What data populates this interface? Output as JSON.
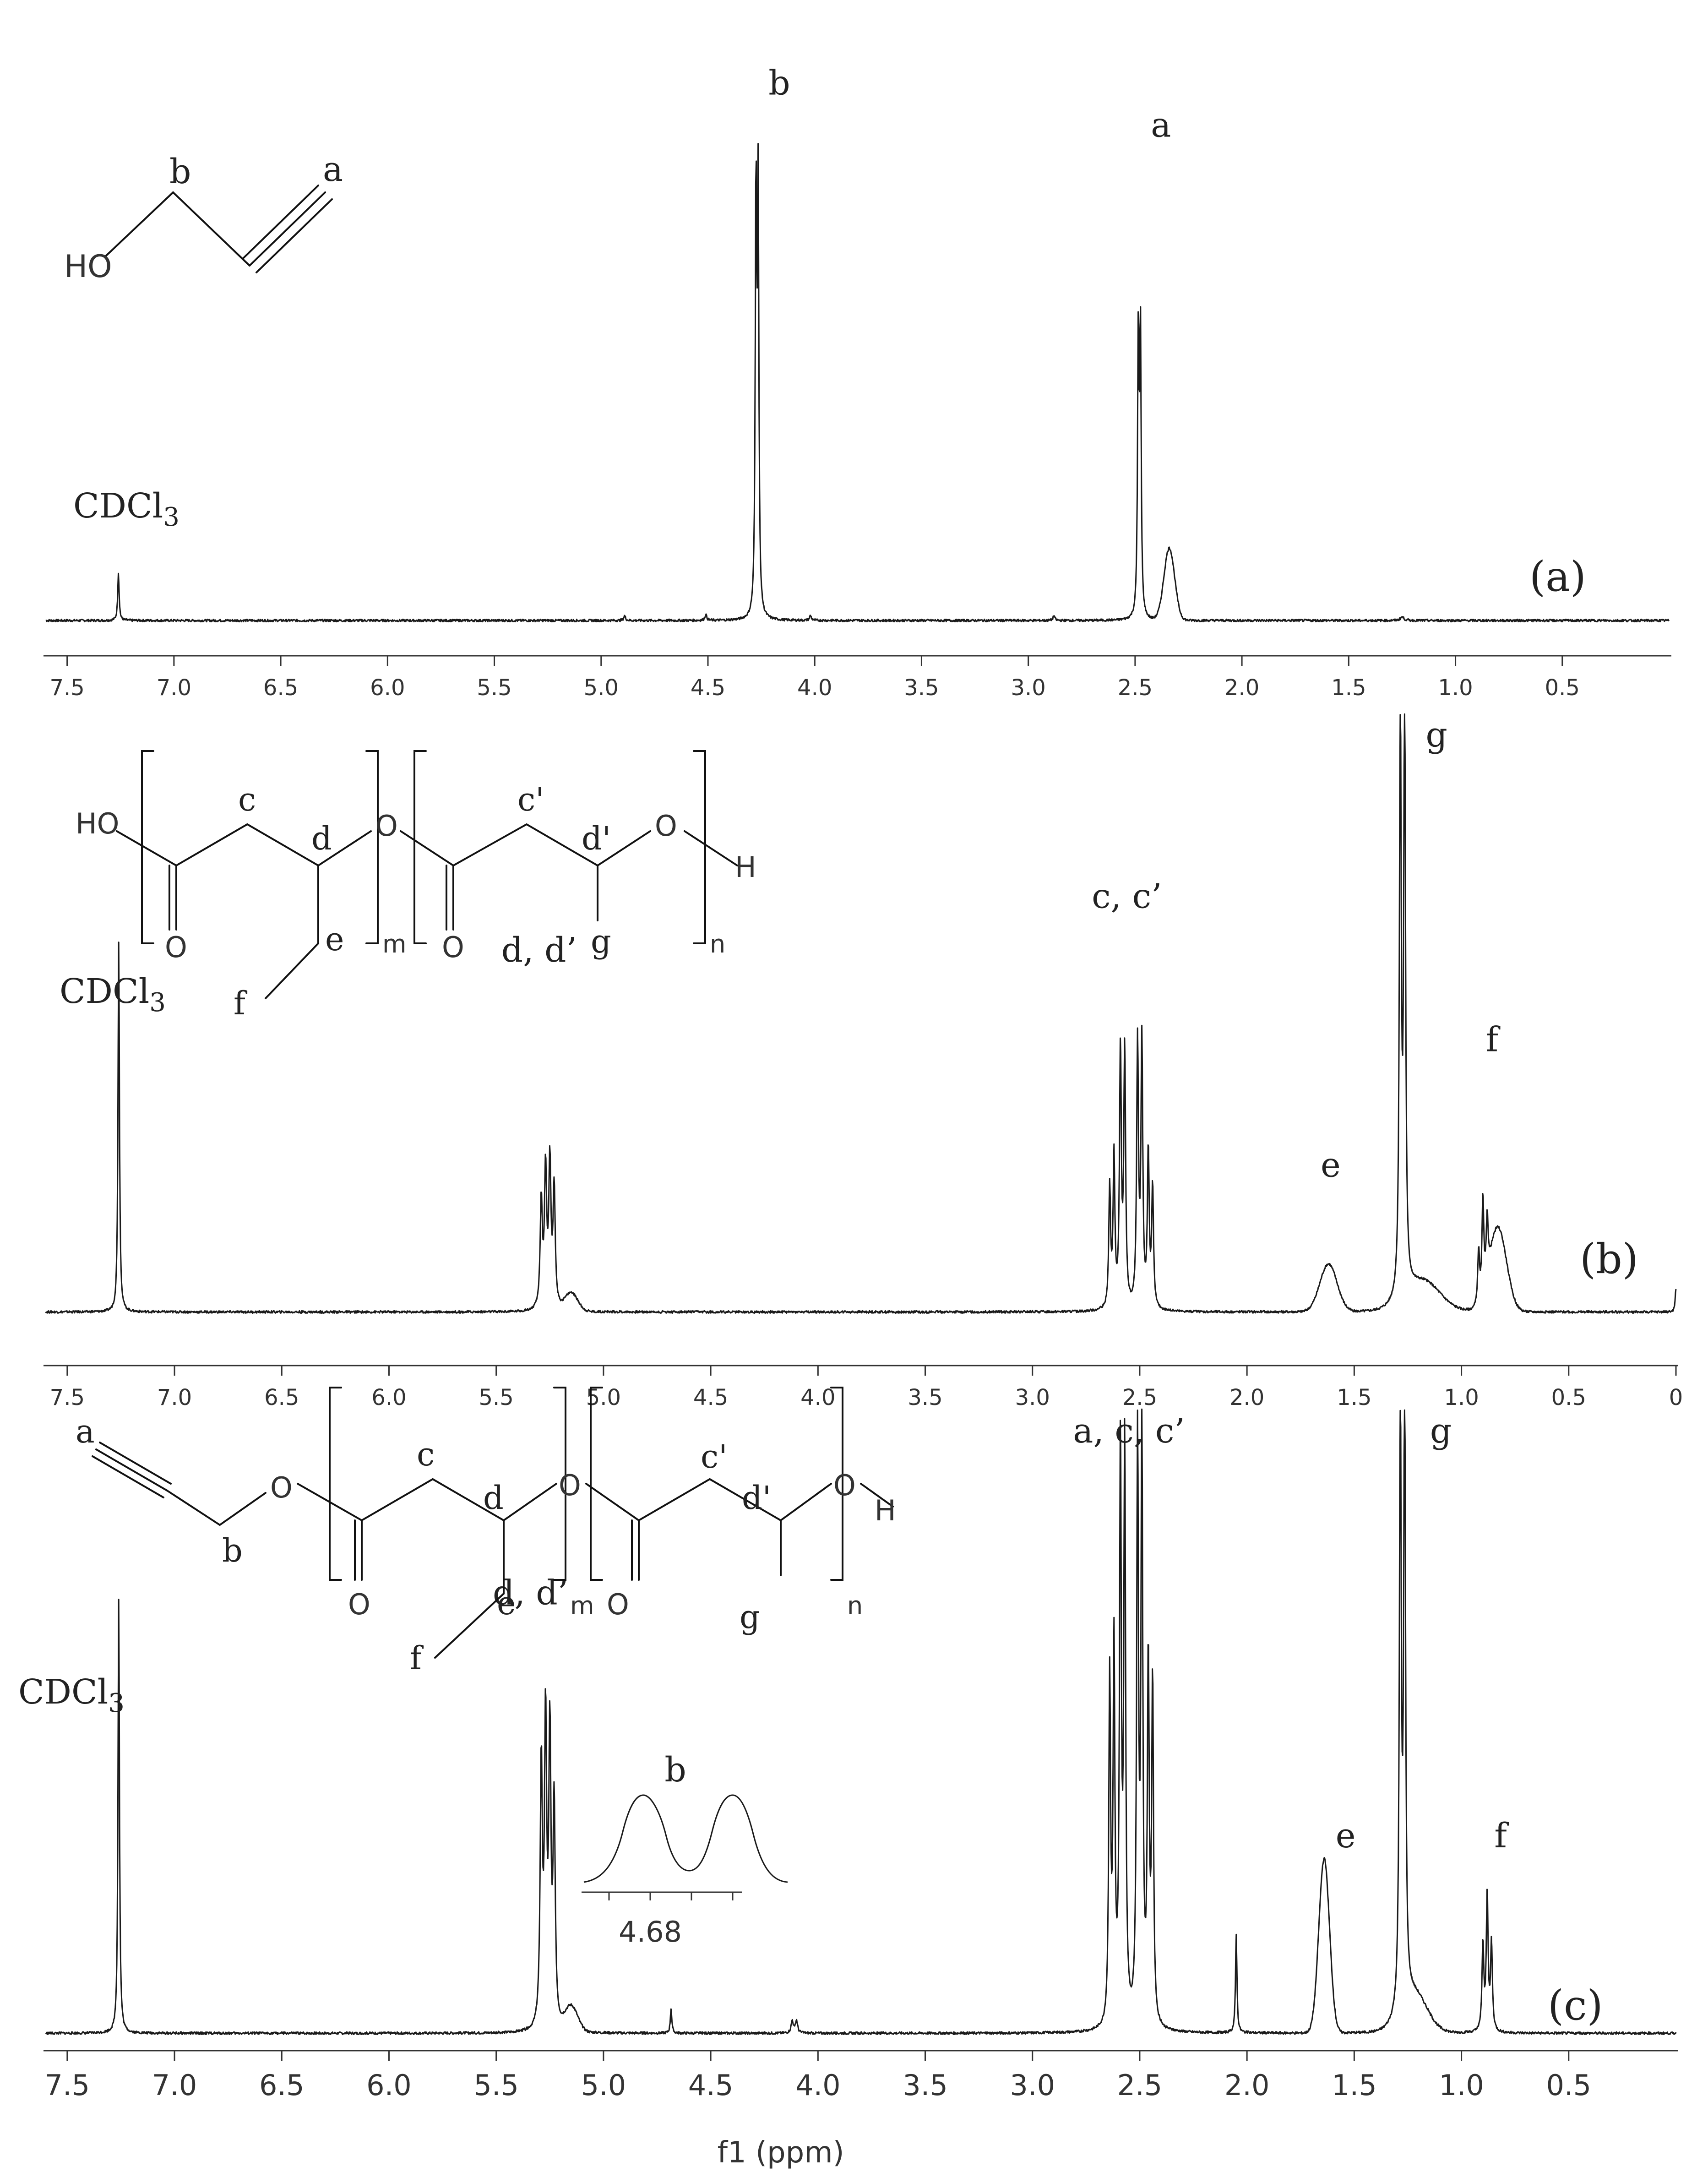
{
  "chart_data": [
    {
      "type": "line",
      "panel_label": "(a)",
      "x_ticks": [
        "7.5",
        "7.0",
        "6.5",
        "6.0",
        "5.5",
        "5.0",
        "4.5",
        "4.0",
        "3.5",
        "3.0",
        "2.5",
        "2.0",
        "1.5",
        "1.0",
        "0.5"
      ],
      "xlim": [
        7.6,
        0.0
      ],
      "solvent_label": "CDCl3",
      "structure": {
        "atom": "HO",
        "labels": [
          "b",
          "a"
        ]
      },
      "peaks": [
        {
          "x": 7.26,
          "h": 0.08,
          "w": 0.004
        },
        {
          "x": 4.89,
          "h": 0.008,
          "w": 0.005
        },
        {
          "x": 4.51,
          "h": 0.01,
          "w": 0.005
        },
        {
          "x": 4.275,
          "h": 0.7,
          "w": 0.004
        },
        {
          "x": 4.265,
          "h": 0.7,
          "w": 0.004
        },
        {
          "x": 4.02,
          "h": 0.008,
          "w": 0.005
        },
        {
          "x": 2.88,
          "h": 0.008,
          "w": 0.005
        },
        {
          "x": 2.485,
          "h": 0.47,
          "w": 0.004
        },
        {
          "x": 2.475,
          "h": 0.47,
          "w": 0.004
        },
        {
          "x": 2.34,
          "h": 0.12,
          "w": 0.025
        },
        {
          "x": 1.25,
          "h": 0.006,
          "w": 0.01
        }
      ],
      "labels": [
        {
          "text": "b",
          "x": 4.27,
          "y": 0.93
        },
        {
          "text": "a",
          "x": 2.48,
          "y": 0.86
        }
      ]
    },
    {
      "type": "line",
      "panel_label": "(b)",
      "x_ticks": [
        "7.5",
        "7.0",
        "6.5",
        "6.0",
        "5.5",
        "5.0",
        "4.5",
        "4.0",
        "3.5",
        "3.0",
        "2.5",
        "2.0",
        "1.5",
        "1.0",
        "0.5",
        "0"
      ],
      "xlim": [
        7.6,
        0.0
      ],
      "solvent_label": "CDCl3",
      "structure": {
        "atoms": [
          "HO",
          "O",
          "O",
          "O",
          "O",
          "H"
        ],
        "labels": [
          "c",
          "d",
          "e",
          "f",
          "c'",
          "d'",
          "g"
        ],
        "subscripts": [
          "m",
          "n"
        ]
      },
      "peaks": [
        {
          "x": 7.26,
          "h": 0.62,
          "w": 0.004
        },
        {
          "x": 5.29,
          "h": 0.18,
          "w": 0.006
        },
        {
          "x": 5.27,
          "h": 0.23,
          "w": 0.006
        },
        {
          "x": 5.25,
          "h": 0.24,
          "w": 0.006
        },
        {
          "x": 5.23,
          "h": 0.2,
          "w": 0.006
        },
        {
          "x": 5.15,
          "h": 0.03,
          "w": 0.03
        },
        {
          "x": 2.64,
          "h": 0.2,
          "w": 0.005
        },
        {
          "x": 2.62,
          "h": 0.25,
          "w": 0.005
        },
        {
          "x": 2.59,
          "h": 0.43,
          "w": 0.005
        },
        {
          "x": 2.57,
          "h": 0.43,
          "w": 0.005
        },
        {
          "x": 2.51,
          "h": 0.44,
          "w": 0.005
        },
        {
          "x": 2.49,
          "h": 0.44,
          "w": 0.005
        },
        {
          "x": 2.46,
          "h": 0.26,
          "w": 0.005
        },
        {
          "x": 2.44,
          "h": 0.2,
          "w": 0.005
        },
        {
          "x": 1.62,
          "h": 0.08,
          "w": 0.04
        },
        {
          "x": 1.285,
          "h": 1.0,
          "w": 0.005
        },
        {
          "x": 1.265,
          "h": 1.0,
          "w": 0.005
        },
        {
          "x": 1.18,
          "h": 0.05,
          "w": 0.08
        },
        {
          "x": 0.92,
          "h": 0.09,
          "w": 0.005
        },
        {
          "x": 0.9,
          "h": 0.16,
          "w": 0.005
        },
        {
          "x": 0.88,
          "h": 0.1,
          "w": 0.005
        },
        {
          "x": 0.83,
          "h": 0.14,
          "w": 0.04
        },
        {
          "x": 0.0,
          "h": 0.04,
          "w": 0.004
        }
      ],
      "labels": [
        {
          "text": "d, d’",
          "x": 5.3,
          "y": 0.64
        },
        {
          "text": "c, c’",
          "x": 2.56,
          "y": 0.73
        },
        {
          "text": "e",
          "x": 1.71,
          "y": 0.28
        },
        {
          "text": "g",
          "x": 1.22,
          "y": 1.0
        },
        {
          "text": "f",
          "x": 0.94,
          "y": 0.49
        }
      ]
    },
    {
      "type": "line",
      "panel_label": "(c)",
      "x_label": "f1 (ppm)",
      "x_ticks": [
        "7.5",
        "7.0",
        "6.5",
        "6.0",
        "5.5",
        "5.0",
        "4.5",
        "4.0",
        "3.5",
        "3.0",
        "2.5",
        "2.0",
        "1.5",
        "1.0",
        "0.5"
      ],
      "xlim": [
        7.6,
        0.0
      ],
      "solvent_label": "CDCl3",
      "structure": {
        "atoms": [
          "O",
          "O",
          "O",
          "O",
          "O",
          "H"
        ],
        "labels": [
          "a",
          "b",
          "c",
          "d",
          "e",
          "f",
          "c'",
          "d'",
          "g"
        ],
        "subscripts": [
          "m",
          "n"
        ]
      },
      "inset": {
        "label": "b",
        "tick": "4.68"
      },
      "peaks": [
        {
          "x": 7.26,
          "h": 0.7,
          "w": 0.004
        },
        {
          "x": 5.29,
          "h": 0.42,
          "w": 0.006
        },
        {
          "x": 5.27,
          "h": 0.48,
          "w": 0.006
        },
        {
          "x": 5.25,
          "h": 0.46,
          "w": 0.006
        },
        {
          "x": 5.23,
          "h": 0.35,
          "w": 0.006
        },
        {
          "x": 5.15,
          "h": 0.04,
          "w": 0.03
        },
        {
          "x": 4.685,
          "h": 0.04,
          "w": 0.004
        },
        {
          "x": 4.12,
          "h": 0.02,
          "w": 0.006
        },
        {
          "x": 4.1,
          "h": 0.02,
          "w": 0.006
        },
        {
          "x": 2.64,
          "h": 0.55,
          "w": 0.005
        },
        {
          "x": 2.62,
          "h": 0.6,
          "w": 0.005
        },
        {
          "x": 2.59,
          "h": 0.92,
          "w": 0.005
        },
        {
          "x": 2.57,
          "h": 0.92,
          "w": 0.005
        },
        {
          "x": 2.51,
          "h": 0.94,
          "w": 0.005
        },
        {
          "x": 2.49,
          "h": 0.94,
          "w": 0.005
        },
        {
          "x": 2.46,
          "h": 0.58,
          "w": 0.005
        },
        {
          "x": 2.44,
          "h": 0.55,
          "w": 0.005
        },
        {
          "x": 2.05,
          "h": 0.16,
          "w": 0.004
        },
        {
          "x": 1.64,
          "h": 0.28,
          "w": 0.025
        },
        {
          "x": 1.285,
          "h": 1.0,
          "w": 0.005
        },
        {
          "x": 1.265,
          "h": 1.0,
          "w": 0.005
        },
        {
          "x": 1.22,
          "h": 0.06,
          "w": 0.06
        },
        {
          "x": 0.9,
          "h": 0.14,
          "w": 0.005
        },
        {
          "x": 0.88,
          "h": 0.22,
          "w": 0.005
        },
        {
          "x": 0.86,
          "h": 0.14,
          "w": 0.005
        }
      ],
      "labels": [
        {
          "text": "d, d’",
          "x": 5.34,
          "y": 0.74
        },
        {
          "text": "a, c, c’",
          "x": 2.55,
          "y": 1.0
        },
        {
          "text": "e",
          "x": 1.64,
          "y": 0.35
        },
        {
          "text": "g",
          "x": 1.2,
          "y": 1.0
        },
        {
          "text": "f",
          "x": 0.9,
          "y": 0.35
        }
      ]
    }
  ]
}
